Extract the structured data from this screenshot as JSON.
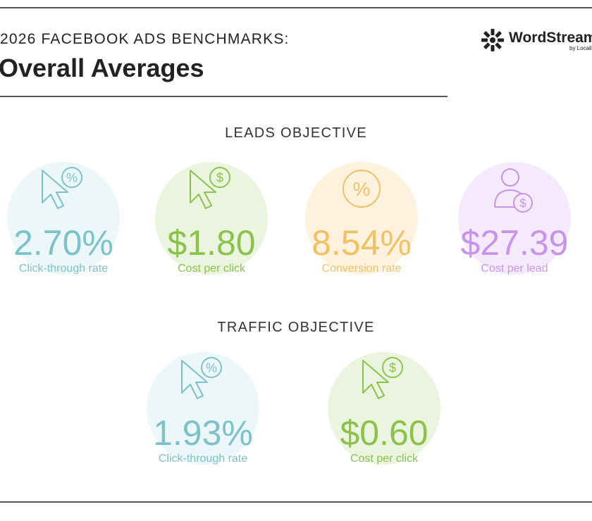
{
  "header": {
    "kicker": "2026 FACEBOOK ADS BENCHMARKS:",
    "title": "Overall Averages",
    "brand": "WordStream",
    "brand_sub": "by LocaliQ"
  },
  "sections": [
    {
      "title": "LEADS OBJECTIVE",
      "metrics": [
        {
          "value": "2.70%",
          "label": "Click-through rate",
          "icon": "%",
          "color": "#7cc2c9",
          "bg": "#ecf7f9"
        },
        {
          "value": "$1.80",
          "label": "Cost per click",
          "icon": "$",
          "color": "#8bc34a",
          "bg": "#ebf4df"
        },
        {
          "value": "8.54%",
          "label": "Conversion rate",
          "icon": "%",
          "color": "#f0c165",
          "bg": "#fdf2de"
        },
        {
          "value": "$27.39",
          "label": "Cost per lead",
          "icon": "$",
          "color": "#c794ea",
          "bg": "#f4eafb"
        }
      ]
    },
    {
      "title": "TRAFFIC OBJECTIVE",
      "metrics": [
        {
          "value": "1.93%",
          "label": "Click-through rate",
          "icon": "%",
          "color": "#7cc2c9",
          "bg": "#ecf7f9"
        },
        {
          "value": "$0.60",
          "label": "Cost per click",
          "icon": "$",
          "color": "#8bc34a",
          "bg": "#ebf4df"
        }
      ]
    }
  ]
}
